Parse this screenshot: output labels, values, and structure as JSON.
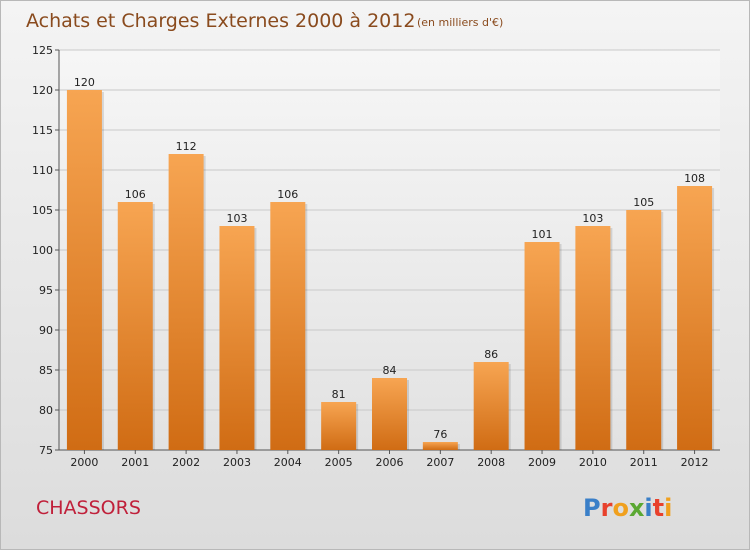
{
  "header": {
    "title": "Achats et Charges Externes 2000 à 2012",
    "unit": "(en milliers d'€)"
  },
  "footer": {
    "city": "CHASSORS",
    "logo_text": "Proxiti"
  },
  "colors": {
    "bar_top": "#f7a552",
    "bar_bottom": "#d06c14",
    "city": "#c0203a",
    "title": "#8a4b1e"
  },
  "chart_data": {
    "type": "bar",
    "title": "Achats et Charges Externes 2000 à 2012",
    "subtitle": "(en milliers d'€)",
    "xlabel": "",
    "ylabel": "",
    "categories": [
      "2000",
      "2001",
      "2002",
      "2003",
      "2004",
      "2005",
      "2006",
      "2007",
      "2008",
      "2009",
      "2010",
      "2011",
      "2012"
    ],
    "values": [
      120,
      106,
      112,
      103,
      106,
      81,
      84,
      76,
      86,
      101,
      103,
      105,
      108
    ],
    "ylim": [
      75,
      125
    ],
    "yticks": [
      75,
      80,
      85,
      90,
      95,
      100,
      105,
      110,
      115,
      120,
      125
    ],
    "grid": true,
    "data_labels": true
  }
}
